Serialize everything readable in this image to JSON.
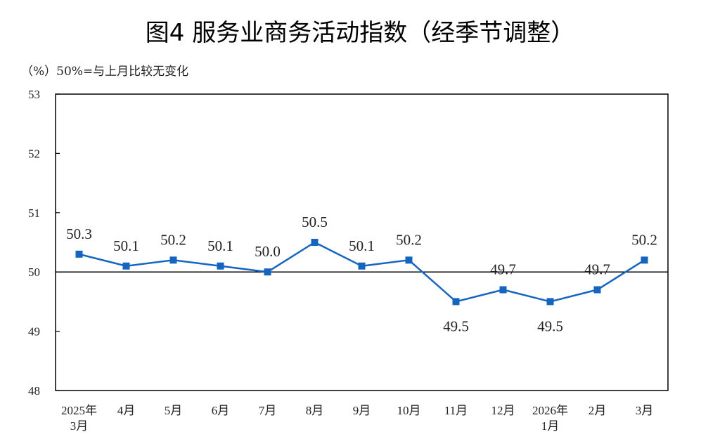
{
  "chart_data": {
    "type": "line",
    "title": "图4  服务业商务活动指数（经季节调整）",
    "unit_note": "（%）50%=与上月比较无变化",
    "categories": [
      [
        "2025年",
        "3月"
      ],
      [
        "4月"
      ],
      [
        "5月"
      ],
      [
        "6月"
      ],
      [
        "7月"
      ],
      [
        "8月"
      ],
      [
        "9月"
      ],
      [
        "10月"
      ],
      [
        "11月"
      ],
      [
        "12月"
      ],
      [
        "2026年",
        "1月"
      ],
      [
        "2月"
      ],
      [
        "3月"
      ]
    ],
    "values": [
      50.3,
      50.1,
      50.2,
      50.1,
      50.0,
      50.5,
      50.1,
      50.2,
      49.5,
      49.7,
      49.5,
      49.7,
      50.2
    ],
    "value_labels": [
      "50.3",
      "50.1",
      "50.2",
      "50.1",
      "50.0",
      "50.5",
      "50.1",
      "50.2",
      "49.5",
      "49.7",
      "49.5",
      "49.7",
      "50.2"
    ],
    "label_position": [
      "above",
      "above",
      "above",
      "above",
      "above",
      "above",
      "above",
      "above",
      "below",
      "above",
      "below",
      "above",
      "above"
    ],
    "ylim": [
      48,
      53
    ],
    "yticks": [
      "48",
      "49",
      "50",
      "51",
      "52",
      "53"
    ],
    "reference_line": 50,
    "series_color": "#1565c0",
    "grid": false,
    "legend": "none"
  }
}
